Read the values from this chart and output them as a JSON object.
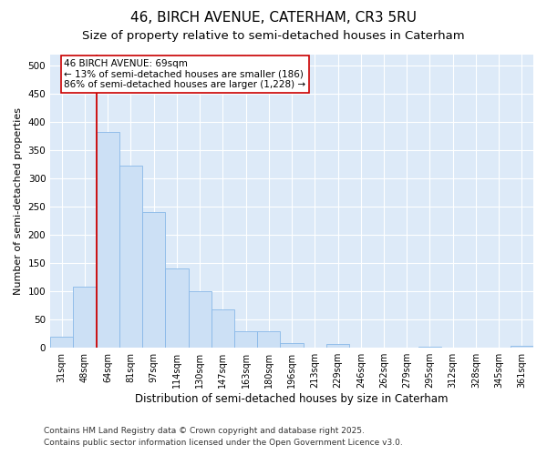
{
  "title": "46, BIRCH AVENUE, CATERHAM, CR3 5RU",
  "subtitle": "Size of property relative to semi-detached houses in Caterham",
  "xlabel": "Distribution of semi-detached houses by size in Caterham",
  "ylabel": "Number of semi-detached properties",
  "categories": [
    "31sqm",
    "48sqm",
    "64sqm",
    "81sqm",
    "97sqm",
    "114sqm",
    "130sqm",
    "147sqm",
    "163sqm",
    "180sqm",
    "196sqm",
    "213sqm",
    "229sqm",
    "246sqm",
    "262sqm",
    "279sqm",
    "295sqm",
    "312sqm",
    "328sqm",
    "345sqm",
    "361sqm"
  ],
  "values": [
    19,
    108,
    383,
    323,
    241,
    141,
    101,
    68,
    29,
    29,
    9,
    0,
    6,
    0,
    0,
    0,
    2,
    0,
    0,
    0,
    3
  ],
  "bar_color": "#cce0f5",
  "bar_edge_color": "#88b8e8",
  "red_line_index": 2,
  "annotation_line1": "46 BIRCH AVENUE: 69sqm",
  "annotation_line2": "← 13% of semi-detached houses are smaller (186)",
  "annotation_line3": "86% of semi-detached houses are larger (1,228) →",
  "footer1": "Contains HM Land Registry data © Crown copyright and database right 2025.",
  "footer2": "Contains public sector information licensed under the Open Government Licence v3.0.",
  "ylim": [
    0,
    520
  ],
  "yticks": [
    0,
    50,
    100,
    150,
    200,
    250,
    300,
    350,
    400,
    450,
    500
  ],
  "plot_bg_color": "#ddeaf8",
  "fig_bg_color": "#ffffff",
  "grid_color": "#ffffff",
  "title_fontsize": 11,
  "subtitle_fontsize": 9.5,
  "tick_fontsize": 7,
  "ylabel_fontsize": 8,
  "xlabel_fontsize": 8.5,
  "footer_fontsize": 6.5,
  "annotation_fontsize": 7.5,
  "red_line_color": "#cc0000",
  "annotation_box_color": "#ffffff",
  "annotation_box_edge": "#cc0000"
}
